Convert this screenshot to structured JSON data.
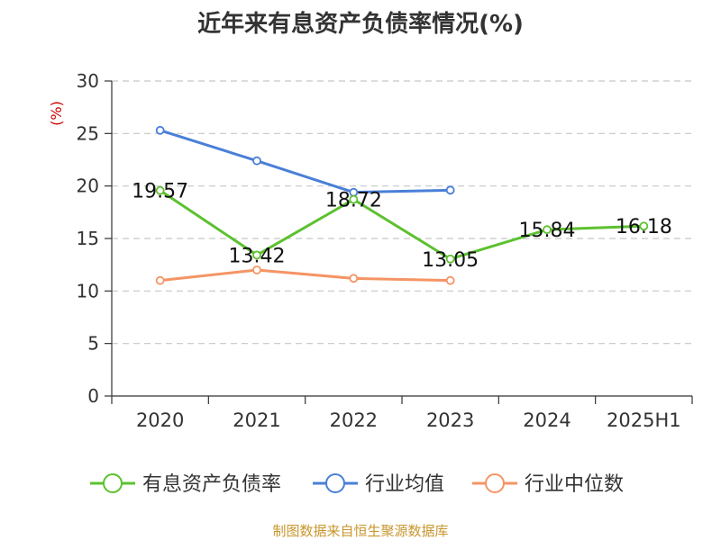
{
  "chart_data": {
    "type": "line",
    "title": "近年来有息资产负债率情况(%)",
    "ylabel": "(%)",
    "xlabel": "",
    "categories": [
      "2020",
      "2021",
      "2022",
      "2023",
      "2024",
      "2025H1"
    ],
    "ylim": [
      0,
      30
    ],
    "yticks": [
      0,
      5,
      10,
      15,
      20,
      25,
      30
    ],
    "grid": true,
    "legend_position": "bottom",
    "series": [
      {
        "name": "有息资产负债率",
        "color": "#5cc12f",
        "values": [
          19.57,
          13.42,
          18.72,
          13.05,
          15.84,
          16.18
        ],
        "labels": [
          "19.57",
          "13.42",
          "18.72",
          "13.05",
          "15.84",
          "16.18"
        ]
      },
      {
        "name": "行业均值",
        "color": "#4a7fd8",
        "values": [
          25.3,
          22.4,
          19.4,
          19.6,
          null,
          null
        ]
      },
      {
        "name": "行业中位数",
        "color": "#f59464",
        "values": [
          11.0,
          12.0,
          11.2,
          11.0,
          null,
          null
        ]
      }
    ],
    "source": "制图数据来自恒生聚源数据库"
  }
}
